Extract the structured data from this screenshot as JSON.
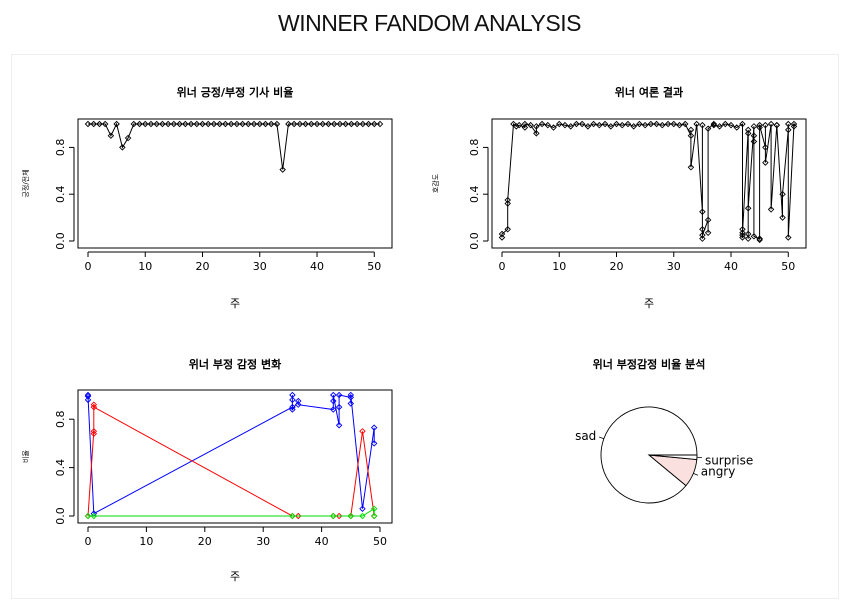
{
  "page": {
    "title": "WINNER FANDOM ANALYSIS"
  },
  "chart_data": [
    {
      "type": "line",
      "title": "위너  긍정/부정 기사 비율",
      "xlabel": "주",
      "ylabel": "긍정/전체",
      "xlim": [
        0,
        51
      ],
      "ylim": [
        0,
        1
      ],
      "x_ticks": [
        0,
        10,
        20,
        30,
        40,
        50
      ],
      "y_ticks": [
        0.0,
        0.4,
        0.8
      ],
      "series": [
        {
          "color": "#000000",
          "points": [
            [
              0,
              1
            ],
            [
              1,
              1
            ],
            [
              2,
              1
            ],
            [
              3,
              1
            ],
            [
              4,
              0.9
            ],
            [
              5,
              1
            ],
            [
              6,
              0.8
            ],
            [
              7,
              0.88
            ],
            [
              8,
              1
            ],
            [
              9,
              1
            ],
            [
              10,
              1
            ],
            [
              11,
              1
            ],
            [
              12,
              1
            ],
            [
              13,
              1
            ],
            [
              14,
              1
            ],
            [
              15,
              1
            ],
            [
              16,
              1
            ],
            [
              17,
              1
            ],
            [
              18,
              1
            ],
            [
              19,
              1
            ],
            [
              20,
              1
            ],
            [
              21,
              1
            ],
            [
              22,
              1
            ],
            [
              23,
              1
            ],
            [
              24,
              1
            ],
            [
              25,
              1
            ],
            [
              26,
              1
            ],
            [
              27,
              1
            ],
            [
              28,
              1
            ],
            [
              29,
              1
            ],
            [
              30,
              1
            ],
            [
              31,
              1
            ],
            [
              32,
              1
            ],
            [
              33,
              1
            ],
            [
              34,
              0.61
            ],
            [
              35,
              1
            ],
            [
              36,
              1
            ],
            [
              37,
              1
            ],
            [
              38,
              1
            ],
            [
              39,
              1
            ],
            [
              40,
              1
            ],
            [
              41,
              1
            ],
            [
              42,
              1
            ],
            [
              43,
              1
            ],
            [
              44,
              1
            ],
            [
              45,
              1
            ],
            [
              46,
              1
            ],
            [
              47,
              1
            ],
            [
              48,
              1
            ],
            [
              49,
              1
            ],
            [
              50,
              1
            ],
            [
              51,
              1
            ]
          ]
        }
      ]
    },
    {
      "type": "line",
      "title": "위너  여론 결과",
      "xlabel": "주",
      "ylabel": "호감도",
      "xlim": [
        0,
        51
      ],
      "ylim": [
        0,
        1
      ],
      "x_ticks": [
        0,
        10,
        20,
        30,
        40,
        50
      ],
      "y_ticks": [
        0.0,
        0.4,
        0.8
      ],
      "series": [
        {
          "color": "#000000",
          "points": [
            [
              0,
              0.03
            ],
            [
              0,
              0.06
            ],
            [
              1,
              0.1
            ],
            [
              1,
              0.32
            ],
            [
              1,
              0.35
            ],
            [
              2,
              1
            ],
            [
              2.5,
              0.98
            ],
            [
              3,
              0.99
            ],
            [
              4,
              0.97
            ],
            [
              4,
              1
            ],
            [
              5,
              0.99
            ],
            [
              6,
              0.92
            ],
            [
              6,
              0.98
            ],
            [
              7,
              1
            ],
            [
              8,
              0.99
            ],
            [
              9,
              0.97
            ],
            [
              10,
              1
            ],
            [
              11,
              0.99
            ],
            [
              12,
              0.98
            ],
            [
              13,
              1
            ],
            [
              14,
              1
            ],
            [
              15,
              0.98
            ],
            [
              16,
              1
            ],
            [
              17,
              0.99
            ],
            [
              18,
              1
            ],
            [
              19,
              0.98
            ],
            [
              20,
              1
            ],
            [
              21,
              0.99
            ],
            [
              22,
              1
            ],
            [
              23,
              0.98
            ],
            [
              24,
              1
            ],
            [
              25,
              0.99
            ],
            [
              26,
              1
            ],
            [
              27,
              1
            ],
            [
              28,
              0.99
            ],
            [
              29,
              1
            ],
            [
              30,
              1
            ],
            [
              31,
              0.99
            ],
            [
              32,
              1
            ],
            [
              33,
              0.9
            ],
            [
              33,
              0.95
            ],
            [
              33,
              0.63
            ],
            [
              34,
              1
            ],
            [
              35,
              0.25
            ],
            [
              35,
              0.1
            ],
            [
              35,
              0.02
            ],
            [
              35,
              0.99
            ],
            [
              35,
              0.05
            ],
            [
              36,
              0.18
            ],
            [
              36,
              0.07
            ],
            [
              36,
              0.96
            ],
            [
              37,
              1
            ],
            [
              37,
              0.99
            ],
            [
              38,
              0.98
            ],
            [
              39,
              1
            ],
            [
              40,
              0.99
            ],
            [
              41,
              0.97
            ],
            [
              42,
              1
            ],
            [
              42,
              0.05
            ],
            [
              42,
              0.1
            ],
            [
              42,
              0.03
            ],
            [
              42,
              0.07
            ],
            [
              43,
              0.95
            ],
            [
              43,
              0.02
            ],
            [
              43,
              0.92
            ],
            [
              43,
              0.06
            ],
            [
              43,
              0.28
            ],
            [
              44,
              0.98
            ],
            [
              44,
              0.9
            ],
            [
              44,
              0.85
            ],
            [
              44,
              0.04
            ],
            [
              45,
              0.02
            ],
            [
              45,
              0.97
            ],
            [
              45,
              0.01
            ],
            [
              45,
              0.99
            ],
            [
              46,
              0.8
            ],
            [
              46,
              0.99
            ],
            [
              46,
              0.67
            ],
            [
              47,
              1
            ],
            [
              47,
              0.27
            ],
            [
              48,
              0.99
            ],
            [
              48,
              0.99
            ],
            [
              49,
              0.2
            ],
            [
              49,
              0.4
            ],
            [
              50,
              0.95
            ],
            [
              50,
              1
            ],
            [
              50,
              0.03
            ],
            [
              51,
              1
            ],
            [
              51,
              0.98
            ]
          ]
        }
      ]
    },
    {
      "type": "line",
      "title": "위너  부정 감정 변화",
      "xlabel": "주",
      "ylabel": "비율",
      "xlim": [
        0,
        50
      ],
      "ylim": [
        0,
        1
      ],
      "x_ticks": [
        0,
        10,
        20,
        30,
        40,
        50
      ],
      "y_ticks": [
        0.0,
        0.4,
        0.8
      ],
      "series": [
        {
          "color": "#0000ff",
          "points": [
            [
              0,
              1
            ],
            [
              0,
              0.96
            ],
            [
              0,
              0.99
            ],
            [
              1,
              0.02
            ],
            [
              35,
              0.9
            ],
            [
              35,
              1
            ],
            [
              35,
              0.96
            ],
            [
              35,
              0.88
            ],
            [
              36,
              0.95
            ],
            [
              36,
              0.92
            ],
            [
              42,
              0.88
            ],
            [
              42,
              0.95
            ],
            [
              42,
              1
            ],
            [
              43,
              0.75
            ],
            [
              43,
              0.9
            ],
            [
              43,
              1
            ],
            [
              45,
              0.98
            ],
            [
              45,
              0.93
            ],
            [
              45,
              1
            ],
            [
              47,
              0.06
            ],
            [
              49,
              0.73
            ],
            [
              49,
              0.6
            ]
          ]
        },
        {
          "color": "#ff0000",
          "points": [
            [
              0,
              0
            ],
            [
              1,
              0.7
            ],
            [
              1,
              0.92
            ],
            [
              1,
              0.68
            ],
            [
              1,
              0.9
            ],
            [
              35,
              0
            ],
            [
              36,
              0
            ],
            [
              42,
              0
            ],
            [
              43,
              0
            ],
            [
              45,
              0
            ],
            [
              47,
              0.7
            ],
            [
              49,
              0
            ]
          ]
        },
        {
          "color": "#00dd00",
          "points": [
            [
              0,
              0
            ],
            [
              1,
              0
            ],
            [
              35,
              0
            ],
            [
              42,
              0
            ],
            [
              45,
              0
            ],
            [
              47,
              0
            ],
            [
              49,
              0.06
            ],
            [
              49,
              0
            ]
          ]
        }
      ]
    },
    {
      "type": "pie",
      "title": "위너  부정감정 비율 분석",
      "slices": [
        {
          "label": "sad",
          "value": 89,
          "fill": "#ffffff"
        },
        {
          "label": "angry",
          "value": 9.5,
          "fill": "#fbe0e0"
        },
        {
          "label": "surprise",
          "value": 1.5,
          "fill": "#ffffff"
        }
      ]
    }
  ]
}
